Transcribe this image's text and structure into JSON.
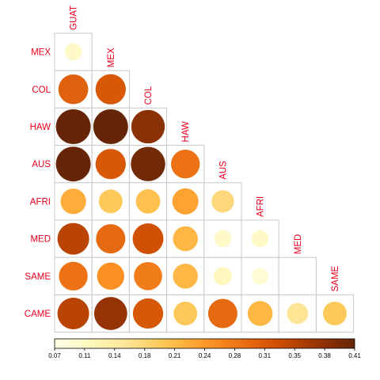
{
  "chart_data": {
    "type": "heatmap",
    "subtype": "correlation-circle-lower-triangle",
    "label_color": "#e8001c",
    "grid_color": "#c8c8c8",
    "row_labels": [
      "MEX",
      "COL",
      "HAW",
      "AUS",
      "AFRI",
      "MED",
      "SAME",
      "CAME"
    ],
    "col_labels": [
      "GUAT",
      "MEX",
      "COL",
      "HAW",
      "AUS",
      "AFRI",
      "MED",
      "SAME"
    ],
    "values": [
      [
        0.1
      ],
      [
        0.3,
        0.31
      ],
      [
        0.41,
        0.41,
        0.38
      ],
      [
        0.41,
        0.31,
        0.4,
        0.28
      ],
      [
        0.22,
        0.19,
        0.2,
        0.23,
        0.17
      ],
      [
        0.34,
        0.29,
        0.32,
        0.21,
        0.1,
        0.1
      ],
      [
        0.28,
        0.25,
        0.27,
        0.21,
        0.11,
        0.09,
        null
      ],
      [
        0.34,
        0.37,
        0.31,
        0.19,
        0.29,
        0.21,
        0.15,
        0.19
      ]
    ],
    "colorbar": {
      "min": 0.07,
      "max": 0.41,
      "ticks": [
        "0.07",
        "0.11",
        "0.14",
        "0.18",
        "0.21",
        "0.24",
        "0.28",
        "0.31",
        "0.35",
        "0.38",
        "0.41"
      ],
      "colors": [
        "#ffffe5",
        "#fff7bc",
        "#fee391",
        "#fec44f",
        "#fe9929",
        "#ec7014",
        "#cc4c02",
        "#993404",
        "#662506"
      ]
    }
  }
}
